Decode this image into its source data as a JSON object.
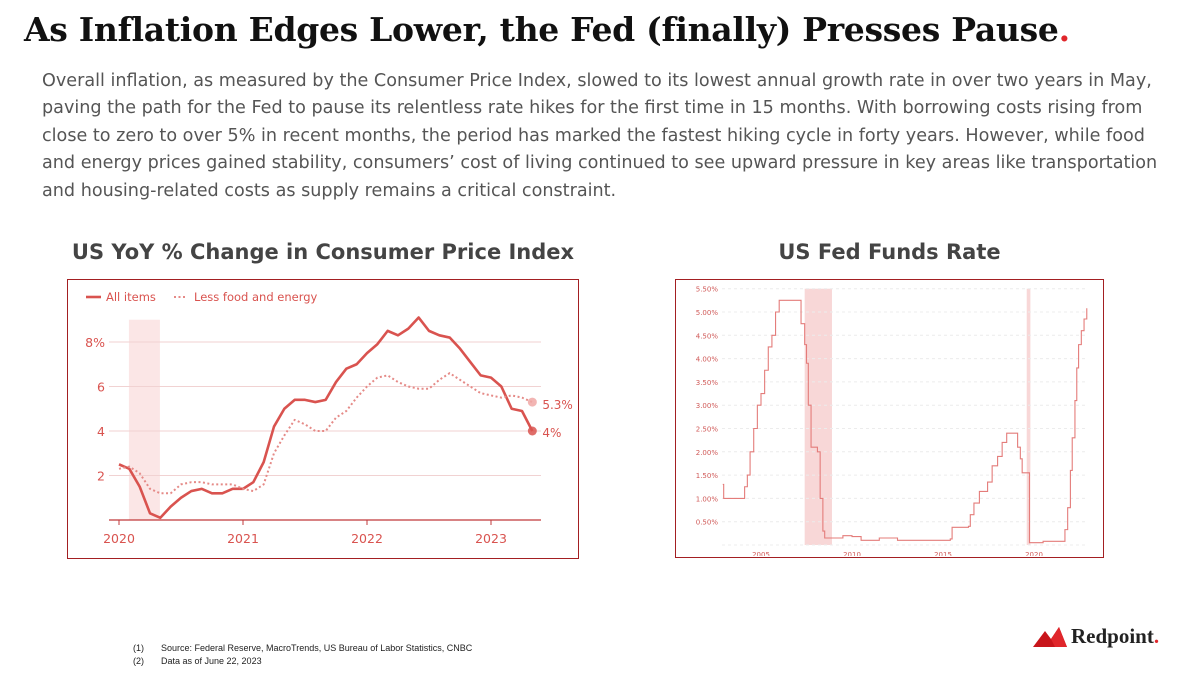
{
  "title": {
    "text": "As Inflation Edges Lower, the Fed (finally) Presses Pause",
    "accent": "."
  },
  "paragraph": "Overall inflation, as measured by the Consumer Price Index, slowed to its lowest annual growth rate in over two years in May, paving the path for the Fed to pause its relentless rate hikes for the first time in 15 months. With borrowing costs rising from close to zero to over 5% in recent months, the period has marked the fastest hiking cycle in forty years. However, while food and energy prices gained stability, consumers’ cost of living continued to see upward pressure in key areas like  transportation and housing-related costs as supply remains a critical constraint.",
  "colors": {
    "accent": "#e0262b",
    "line": "#d9534f",
    "frame": "#a31f22"
  },
  "chart_data": [
    {
      "type": "line",
      "title": "US YoY % Change in Consumer Price Index",
      "x_start": "2020-01",
      "x_step": "month",
      "xticks": [
        "2020",
        "2021",
        "2022",
        "2023"
      ],
      "yticks": [
        "2",
        "4",
        "6",
        "8%"
      ],
      "ylim": [
        0,
        9.5
      ],
      "recession": [
        2020.08,
        2020.33
      ],
      "series": [
        {
          "name": "All items",
          "style": "solid",
          "end_label": "4%",
          "values": [
            2.5,
            2.3,
            1.5,
            0.3,
            0.1,
            0.6,
            1.0,
            1.3,
            1.4,
            1.2,
            1.2,
            1.4,
            1.4,
            1.7,
            2.6,
            4.2,
            5.0,
            5.4,
            5.4,
            5.3,
            5.4,
            6.2,
            6.8,
            7.0,
            7.5,
            7.9,
            8.5,
            8.3,
            8.6,
            9.1,
            8.5,
            8.3,
            8.2,
            7.7,
            7.1,
            6.5,
            6.4,
            6.0,
            5.0,
            4.9,
            4.0
          ]
        },
        {
          "name": "Less food and energy",
          "style": "dotted",
          "end_label": "5.3%",
          "values": [
            2.3,
            2.4,
            2.1,
            1.4,
            1.2,
            1.2,
            1.6,
            1.7,
            1.7,
            1.6,
            1.6,
            1.6,
            1.4,
            1.3,
            1.6,
            3.0,
            3.8,
            4.5,
            4.3,
            4.0,
            4.0,
            4.6,
            4.9,
            5.5,
            6.0,
            6.4,
            6.5,
            6.2,
            6.0,
            5.9,
            5.9,
            6.3,
            6.6,
            6.3,
            6.0,
            5.7,
            5.6,
            5.5,
            5.6,
            5.5,
            5.3
          ]
        }
      ]
    },
    {
      "type": "line",
      "title": "US Fed Funds Rate",
      "xticks": [
        "2005",
        "2010",
        "2015",
        "2020"
      ],
      "yticks": [
        "0.50%",
        "1.00%",
        "1.50%",
        "2.00%",
        "2.50%",
        "3.00%",
        "3.50%",
        "4.00%",
        "4.50%",
        "5.00%",
        "5.50%"
      ],
      "ylim": [
        0,
        5.5
      ],
      "recessions": [
        [
          2007.9,
          2009.4
        ],
        [
          2020.1,
          2020.3
        ]
      ],
      "series": [
        {
          "name": "Fed Funds Rate",
          "points": [
            [
              2003.4,
              1.3
            ],
            [
              2003.45,
              1.0
            ],
            [
              2004.5,
              1.0
            ],
            [
              2004.6,
              1.25
            ],
            [
              2004.75,
              1.5
            ],
            [
              2004.9,
              2.0
            ],
            [
              2005.1,
              2.5
            ],
            [
              2005.3,
              3.0
            ],
            [
              2005.5,
              3.25
            ],
            [
              2005.7,
              3.75
            ],
            [
              2005.9,
              4.25
            ],
            [
              2006.1,
              4.5
            ],
            [
              2006.3,
              5.0
            ],
            [
              2006.5,
              5.25
            ],
            [
              2007.6,
              5.25
            ],
            [
              2007.7,
              4.75
            ],
            [
              2007.9,
              4.3
            ],
            [
              2008.0,
              3.9
            ],
            [
              2008.1,
              3.0
            ],
            [
              2008.25,
              2.1
            ],
            [
              2008.6,
              2.0
            ],
            [
              2008.75,
              1.0
            ],
            [
              2008.9,
              0.3
            ],
            [
              2009.0,
              0.15
            ],
            [
              2009.5,
              0.15
            ],
            [
              2010.0,
              0.2
            ],
            [
              2010.5,
              0.18
            ],
            [
              2011.0,
              0.1
            ],
            [
              2012.0,
              0.15
            ],
            [
              2013.0,
              0.1
            ],
            [
              2014.0,
              0.1
            ],
            [
              2015.9,
              0.13
            ],
            [
              2016.0,
              0.38
            ],
            [
              2016.9,
              0.4
            ],
            [
              2017.0,
              0.65
            ],
            [
              2017.2,
              0.9
            ],
            [
              2017.5,
              1.15
            ],
            [
              2017.95,
              1.35
            ],
            [
              2018.2,
              1.7
            ],
            [
              2018.5,
              1.9
            ],
            [
              2018.75,
              2.2
            ],
            [
              2019.0,
              2.4
            ],
            [
              2019.5,
              2.4
            ],
            [
              2019.6,
              2.1
            ],
            [
              2019.75,
              1.85
            ],
            [
              2019.85,
              1.55
            ],
            [
              2020.15,
              1.55
            ],
            [
              2020.25,
              0.05
            ],
            [
              2021.0,
              0.08
            ],
            [
              2022.15,
              0.08
            ],
            [
              2022.2,
              0.33
            ],
            [
              2022.35,
              0.8
            ],
            [
              2022.5,
              1.6
            ],
            [
              2022.6,
              2.3
            ],
            [
              2022.75,
              3.1
            ],
            [
              2022.85,
              3.8
            ],
            [
              2022.95,
              4.3
            ],
            [
              2023.1,
              4.6
            ],
            [
              2023.25,
              4.85
            ],
            [
              2023.4,
              5.08
            ]
          ]
        }
      ]
    }
  ],
  "footnotes": [
    {
      "num": "(1)",
      "text": "Source: Federal Reserve, MacroTrends, US Bureau of Labor Statistics, CNBC"
    },
    {
      "num": "(2)",
      "text": "Data as of June 22, 2023"
    }
  ],
  "logo": {
    "name": "Redpoint",
    "accent": "."
  }
}
